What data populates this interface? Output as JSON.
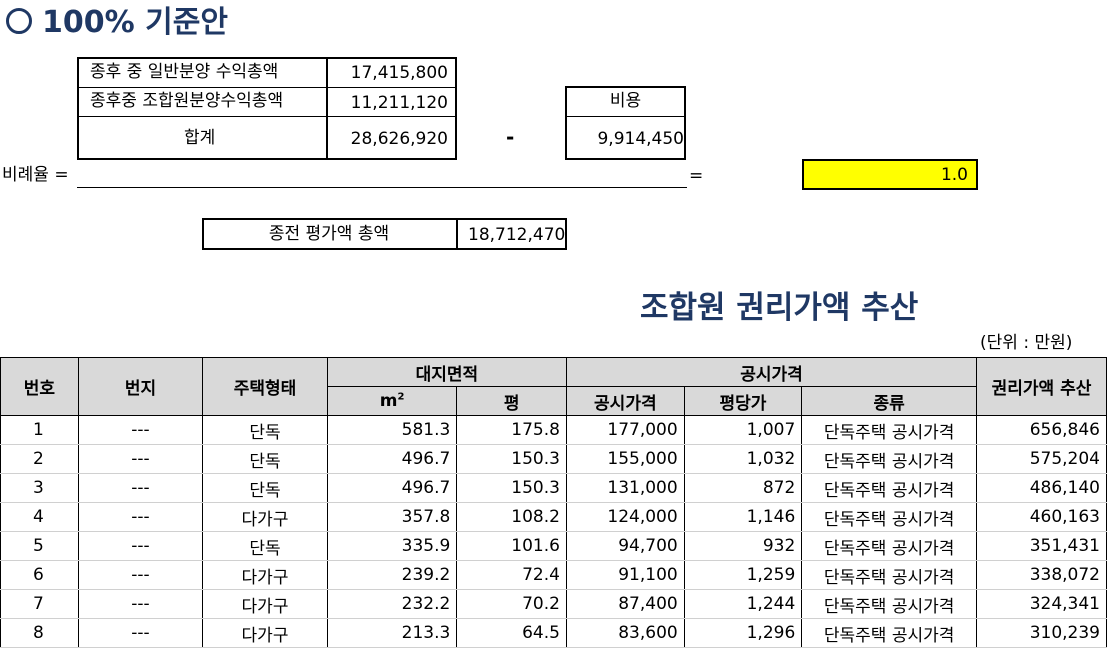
{
  "heading": "100% 기준안",
  "summary": {
    "rows": [
      {
        "label": "종후  중 일반분양 수익총액",
        "value": "17,415,800"
      },
      {
        "label": "종후중 조합원분양수익총액",
        "value": "11,211,120"
      },
      {
        "label": "합계",
        "value": "28,626,920"
      }
    ],
    "minus": "-",
    "cost_label": "비용",
    "cost_value": "9,914,450",
    "ratio_label": "비례율 =",
    "equals": "=",
    "ratio_value": "1.0",
    "before_label": "종전 평가액 총액",
    "before_value": "18,712,470"
  },
  "section_title": "조합원 권리가액 추산",
  "unit_note": "(단위 : 만원)",
  "table": {
    "headers": {
      "no": "번호",
      "lot": "번지",
      "house_type": "주택형태",
      "land_area": "대지면적",
      "m2": "m",
      "m2_sup": "2",
      "pyeong": "평",
      "public_price": "공시가격",
      "public_price_sub": "공시가격",
      "per_pyeong": "평당가",
      "kind": "종류",
      "rights_value": "권리가액 추산"
    },
    "rows": [
      {
        "no": "1",
        "lot": "---",
        "type": "단독",
        "m2": "581.3",
        "py": "175.8",
        "price": "177,000",
        "per": "1,007",
        "kind": "단독주택 공시가격",
        "value": "656,846"
      },
      {
        "no": "2",
        "lot": "---",
        "type": "단독",
        "m2": "496.7",
        "py": "150.3",
        "price": "155,000",
        "per": "1,032",
        "kind": "단독주택 공시가격",
        "value": "575,204"
      },
      {
        "no": "3",
        "lot": "---",
        "type": "단독",
        "m2": "496.7",
        "py": "150.3",
        "price": "131,000",
        "per": "872",
        "kind": "단독주택 공시가격",
        "value": "486,140"
      },
      {
        "no": "4",
        "lot": "---",
        "type": "다가구",
        "m2": "357.8",
        "py": "108.2",
        "price": "124,000",
        "per": "1,146",
        "kind": "단독주택 공시가격",
        "value": "460,163"
      },
      {
        "no": "5",
        "lot": "---",
        "type": "단독",
        "m2": "335.9",
        "py": "101.6",
        "price": "94,700",
        "per": "932",
        "kind": "단독주택 공시가격",
        "value": "351,431"
      },
      {
        "no": "6",
        "lot": "---",
        "type": "다가구",
        "m2": "239.2",
        "py": "72.4",
        "price": "91,100",
        "per": "1,259",
        "kind": "단독주택 공시가격",
        "value": "338,072"
      },
      {
        "no": "7",
        "lot": "---",
        "type": "다가구",
        "m2": "232.2",
        "py": "70.2",
        "price": "87,400",
        "per": "1,244",
        "kind": "단독주택 공시가격",
        "value": "324,341"
      },
      {
        "no": "8",
        "lot": "---",
        "type": "다가구",
        "m2": "213.3",
        "py": "64.5",
        "price": "83,600",
        "per": "1,296",
        "kind": "단독주택 공시가격",
        "value": "310,239"
      }
    ]
  }
}
